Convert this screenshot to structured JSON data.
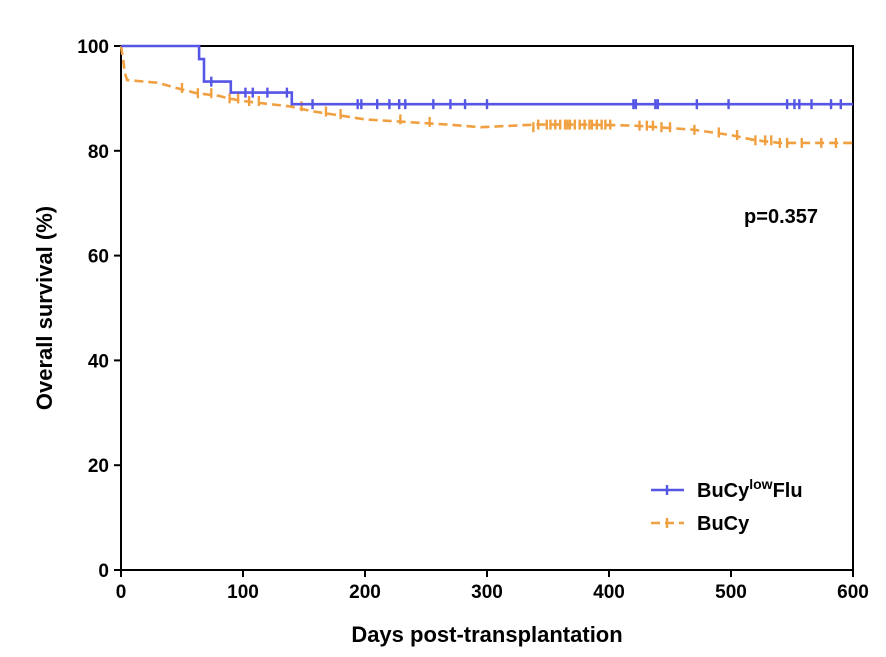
{
  "chart_data": {
    "type": "line",
    "title": "",
    "xlabel": "Days post-transplantation",
    "ylabel": "Overall survival (%)",
    "xlim": [
      0,
      600
    ],
    "ylim": [
      0,
      100
    ],
    "xticks": [
      0,
      100,
      200,
      300,
      400,
      500,
      600
    ],
    "yticks": [
      0,
      20,
      40,
      60,
      80,
      100
    ],
    "xtick_labels": [
      "0",
      "100",
      "200",
      "300",
      "400",
      "500",
      "600"
    ],
    "ytick_labels": [
      "0",
      "20",
      "40",
      "60",
      "80",
      "100"
    ],
    "grid": false,
    "legend_position": "bottom-right",
    "annotation": "p=0.357",
    "series": [
      {
        "name": "BuCy",
        "name_superscript": "low",
        "name_suffix": "Flu",
        "color": "#5555e6",
        "style": "solid",
        "steps": [
          [
            0,
            100
          ],
          [
            64,
            100
          ],
          [
            64,
            97.5
          ],
          [
            68,
            97.5
          ],
          [
            68,
            93.2
          ],
          [
            90,
            93.2
          ],
          [
            90,
            91.1
          ],
          [
            140,
            91.1
          ],
          [
            140,
            88.9
          ],
          [
            600,
            88.9
          ]
        ],
        "censor_x": [
          74,
          102,
          108,
          120,
          136,
          157,
          194,
          197,
          210,
          220,
          228,
          233,
          256,
          270,
          282,
          300,
          420,
          422,
          438,
          440,
          472,
          498,
          546,
          552,
          556,
          566,
          582,
          590
        ]
      },
      {
        "name": "BuCy",
        "color": "#f0a040",
        "style": "dashed",
        "steps": [
          [
            0,
            100
          ],
          [
            2,
            97
          ],
          [
            3,
            95
          ],
          [
            5,
            93.5
          ],
          [
            30,
            93
          ],
          [
            45,
            92
          ],
          [
            62,
            91
          ],
          [
            80,
            90.5
          ],
          [
            88,
            90
          ],
          [
            100,
            89.5
          ],
          [
            118,
            89
          ],
          [
            138,
            88.5
          ],
          [
            158,
            87.5
          ],
          [
            172,
            87
          ],
          [
            186,
            86.5
          ],
          [
            200,
            86
          ],
          [
            234,
            85.5
          ],
          [
            268,
            85
          ],
          [
            295,
            84.5
          ],
          [
            340,
            85
          ],
          [
            380,
            85
          ],
          [
            420,
            84.8
          ],
          [
            440,
            84.5
          ],
          [
            470,
            84
          ],
          [
            485,
            83.5
          ],
          [
            500,
            83
          ],
          [
            510,
            82.5
          ],
          [
            520,
            82
          ],
          [
            540,
            81.5
          ],
          [
            600,
            81.5
          ]
        ],
        "censor_x": [
          50,
          63,
          74,
          89,
          96,
          105,
          113,
          148,
          168,
          180,
          229,
          253,
          338,
          342,
          349,
          352,
          356,
          360,
          364,
          366,
          368,
          372,
          376,
          380,
          384,
          386,
          390,
          394,
          397,
          401,
          425,
          431,
          436,
          443,
          450,
          470,
          490,
          505,
          520,
          528,
          533,
          540,
          546,
          558,
          574,
          586
        ]
      }
    ]
  }
}
